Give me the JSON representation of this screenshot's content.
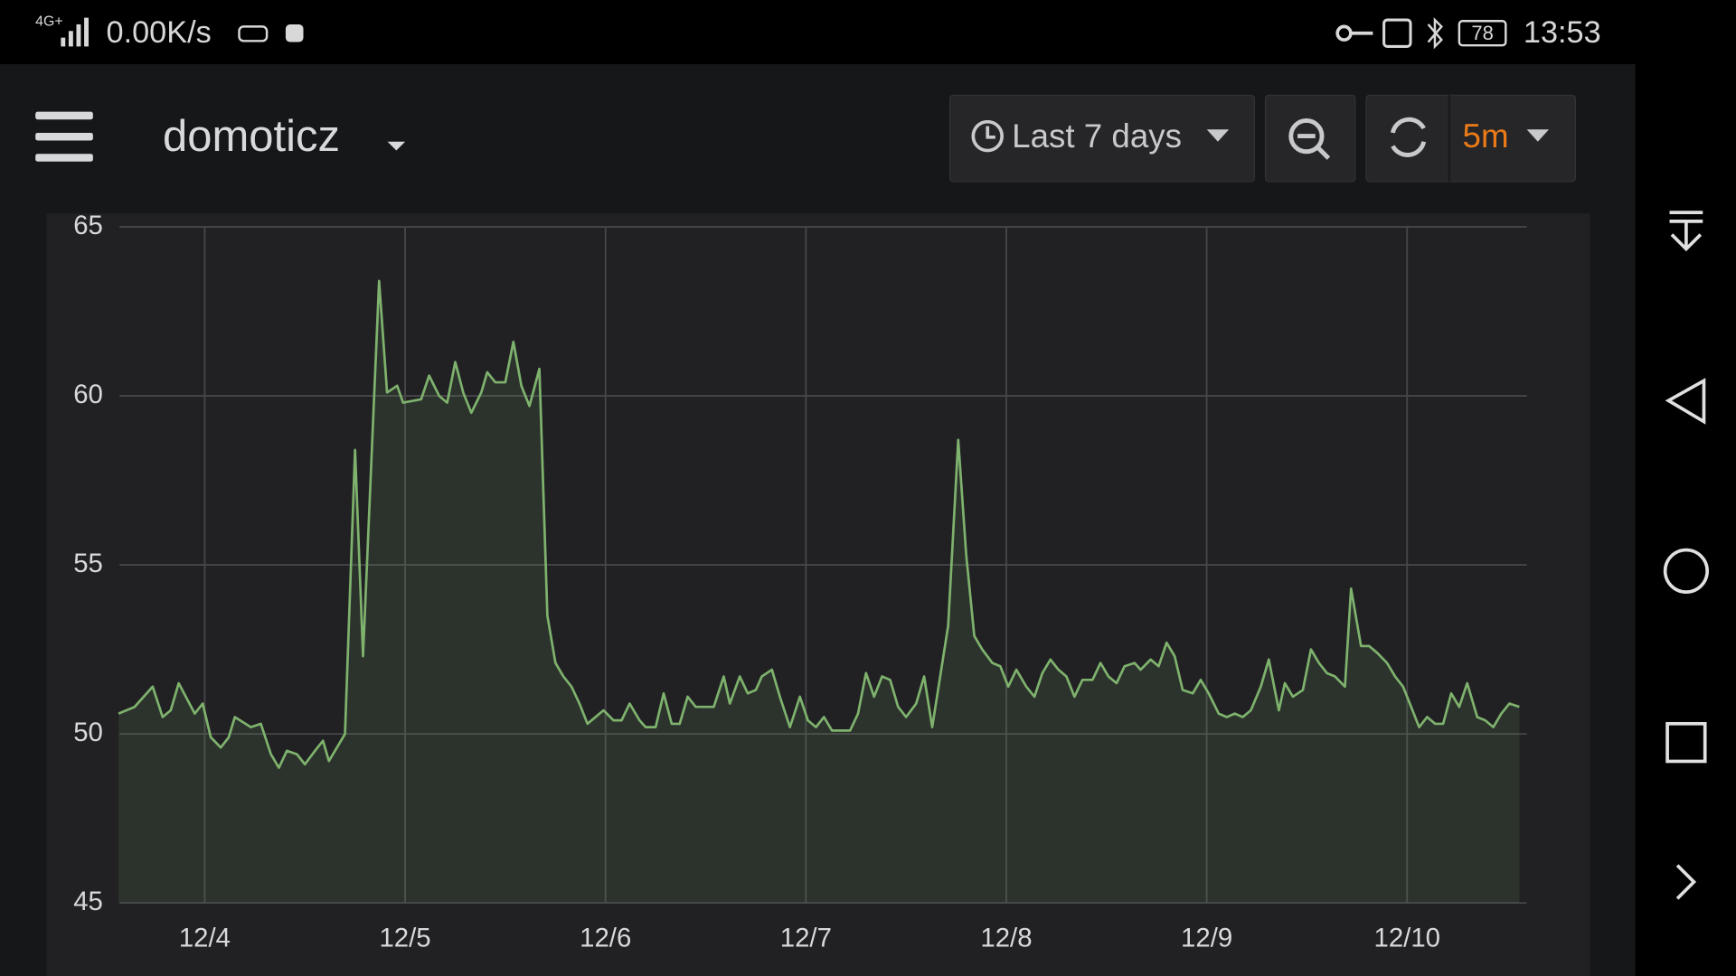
{
  "status_bar": {
    "network": "4G+",
    "speed": "0.00K/s",
    "battery": "78",
    "time": "13:53"
  },
  "toolbar": {
    "dashboard": "domoticz",
    "time_range": "Last 7 days",
    "refresh": "5m"
  },
  "chart_data": {
    "type": "line",
    "color": "#7eb26d",
    "grid": true,
    "area": true,
    "xlim": [
      3.575,
      10.597
    ],
    "ylim": [
      45,
      65
    ],
    "xticks": [
      {
        "value": 4,
        "label": "12/4"
      },
      {
        "value": 5,
        "label": "12/5"
      },
      {
        "value": 6,
        "label": "12/6"
      },
      {
        "value": 7,
        "label": "12/7"
      },
      {
        "value": 8,
        "label": "12/8"
      },
      {
        "value": 9,
        "label": "12/9"
      },
      {
        "value": 10,
        "label": "12/10"
      }
    ],
    "yticks": [
      45,
      50,
      55,
      60,
      65
    ],
    "x": [
      3.57,
      3.65,
      3.74,
      3.79,
      3.83,
      3.87,
      3.95,
      3.99,
      4.03,
      4.08,
      4.12,
      4.15,
      4.23,
      4.28,
      4.33,
      4.37,
      4.41,
      4.46,
      4.5,
      4.55,
      4.59,
      4.62,
      4.7,
      4.75,
      4.79,
      4.87,
      4.91,
      4.96,
      4.99,
      5.08,
      5.12,
      5.17,
      5.21,
      5.25,
      5.29,
      5.33,
      5.38,
      5.41,
      5.45,
      5.5,
      5.54,
      5.58,
      5.62,
      5.67,
      5.71,
      5.75,
      5.79,
      5.83,
      5.87,
      5.91,
      5.99,
      6.04,
      6.08,
      6.12,
      6.17,
      6.2,
      6.25,
      6.29,
      6.33,
      6.37,
      6.41,
      6.45,
      6.5,
      6.54,
      6.59,
      6.62,
      6.67,
      6.71,
      6.75,
      6.78,
      6.83,
      6.87,
      6.92,
      6.97,
      7.01,
      7.05,
      7.09,
      7.13,
      7.22,
      7.26,
      7.3,
      7.34,
      7.38,
      7.42,
      7.46,
      7.5,
      7.55,
      7.59,
      7.63,
      7.71,
      7.76,
      7.8,
      7.84,
      7.88,
      7.93,
      7.97,
      8.01,
      8.05,
      8.1,
      8.14,
      8.18,
      8.22,
      8.26,
      8.3,
      8.34,
      8.38,
      8.43,
      8.47,
      8.51,
      8.55,
      8.59,
      8.64,
      8.67,
      8.72,
      8.76,
      8.8,
      8.84,
      8.88,
      8.93,
      8.97,
      9.01,
      9.06,
      9.1,
      9.14,
      9.18,
      9.22,
      9.27,
      9.31,
      9.36,
      9.39,
      9.43,
      9.48,
      9.52,
      9.56,
      9.6,
      9.64,
      9.69,
      9.72,
      9.77,
      9.81,
      9.85,
      9.9,
      9.94,
      9.98,
      10.02,
      10.06,
      10.1,
      10.14,
      10.18,
      10.22,
      10.26,
      10.3,
      10.35,
      10.39,
      10.43,
      10.47,
      10.51,
      10.56
    ],
    "values": [
      50.6,
      50.8,
      51.4,
      50.5,
      50.7,
      51.5,
      50.6,
      50.9,
      49.9,
      49.6,
      49.9,
      50.5,
      50.2,
      50.3,
      49.4,
      49.0,
      49.5,
      49.4,
      49.1,
      49.5,
      49.8,
      49.2,
      50.0,
      58.4,
      52.3,
      63.4,
      60.1,
      60.3,
      59.8,
      59.9,
      60.6,
      60.0,
      59.8,
      61.0,
      60.1,
      59.5,
      60.1,
      60.7,
      60.4,
      60.4,
      61.6,
      60.3,
      59.7,
      60.8,
      53.5,
      52.1,
      51.7,
      51.4,
      50.9,
      50.3,
      50.7,
      50.4,
      50.4,
      50.9,
      50.4,
      50.2,
      50.2,
      51.2,
      50.3,
      50.3,
      51.1,
      50.8,
      50.8,
      50.8,
      51.7,
      50.9,
      51.7,
      51.2,
      51.3,
      51.7,
      51.9,
      51.1,
      50.2,
      51.1,
      50.4,
      50.2,
      50.5,
      50.1,
      50.1,
      50.6,
      51.8,
      51.1,
      51.7,
      51.6,
      50.8,
      50.5,
      50.9,
      51.7,
      50.2,
      53.2,
      58.7,
      55.3,
      52.9,
      52.5,
      52.1,
      52.0,
      51.4,
      51.9,
      51.4,
      51.1,
      51.8,
      52.2,
      51.9,
      51.7,
      51.1,
      51.6,
      51.6,
      52.1,
      51.7,
      51.5,
      52.0,
      52.1,
      51.9,
      52.2,
      52.0,
      52.7,
      52.3,
      51.3,
      51.2,
      51.6,
      51.2,
      50.6,
      50.5,
      50.6,
      50.5,
      50.7,
      51.4,
      52.2,
      50.7,
      51.5,
      51.1,
      51.3,
      52.5,
      52.1,
      51.8,
      51.7,
      51.4,
      54.3,
      52.6,
      52.6,
      52.4,
      52.1,
      51.7,
      51.4,
      50.8,
      50.2,
      50.5,
      50.3,
      50.3,
      51.2,
      50.8,
      51.5,
      50.5,
      50.4,
      50.2,
      50.6,
      50.9,
      50.8
    ]
  }
}
